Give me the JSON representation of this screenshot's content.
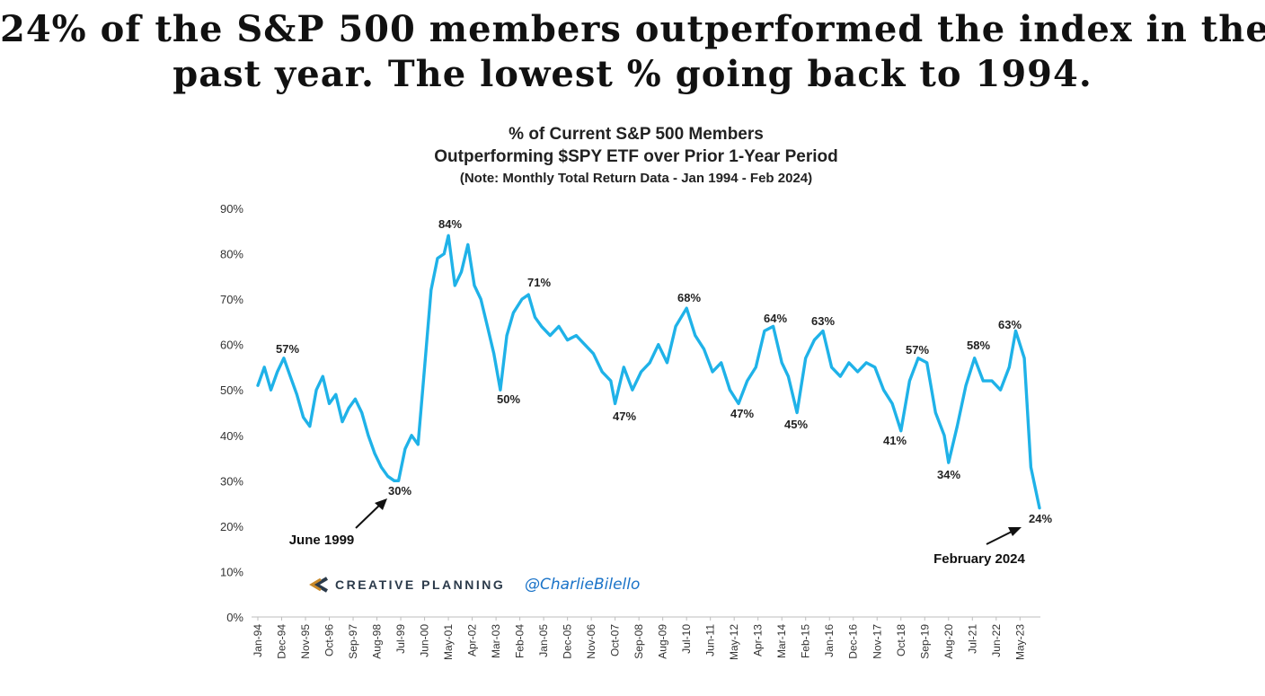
{
  "headline": {
    "line1": "24% of the S&P 500 members outperformed the index in the",
    "line2": "past year. The lowest % going back to 1994."
  },
  "branding": {
    "logo_text": "CREATIVE PLANNING",
    "handle": "@CharlieBilello",
    "logo_colors": [
      "#2b3a4a",
      "#c98a2a"
    ],
    "handle_color": "#1a73c8"
  },
  "chart_data": {
    "type": "line",
    "title": "% of Current S&P 500 Members",
    "subtitle": "Outperforming $SPY ETF over Prior 1-Year Period",
    "note": "(Note: Monthly Total Return Data - Jan 1994 - Feb 2024)",
    "xlabel": "",
    "ylabel": "",
    "ylim": [
      0,
      90
    ],
    "yticks": [
      "0%",
      "10%",
      "20%",
      "30%",
      "40%",
      "50%",
      "60%",
      "70%",
      "80%",
      "90%"
    ],
    "xticks": [
      "Jan-94",
      "Dec-94",
      "Nov-95",
      "Oct-96",
      "Sep-97",
      "Aug-98",
      "Jul-99",
      "Jun-00",
      "May-01",
      "Apr-02",
      "Mar-03",
      "Feb-04",
      "Jan-05",
      "Dec-05",
      "Nov-06",
      "Oct-07",
      "Sep-08",
      "Aug-09",
      "Jul-10",
      "Jun-11",
      "May-12",
      "Apr-13",
      "Mar-14",
      "Feb-15",
      "Jan-16",
      "Dec-16",
      "Nov-17",
      "Oct-18",
      "Sep-19",
      "Aug-20",
      "Jul-21",
      "Jun-22",
      "May-23"
    ],
    "grid": false,
    "legend": "none",
    "line_color": "#1fb2e8",
    "series": [
      {
        "x": [
          "1994-01",
          "1994-04",
          "1994-07",
          "1994-10",
          "1995-01",
          "1995-04",
          "1995-07",
          "1995-10",
          "1996-01",
          "1996-04",
          "1996-07",
          "1996-10",
          "1997-01",
          "1997-04",
          "1997-07",
          "1997-10",
          "1998-01",
          "1998-04",
          "1998-07",
          "1998-10",
          "1999-01",
          "1999-04",
          "1999-06",
          "1999-09",
          "1999-12",
          "2000-03",
          "2000-06",
          "2000-09",
          "2000-12",
          "2001-03",
          "2001-05",
          "2001-08",
          "2001-11",
          "2002-02",
          "2002-05",
          "2002-08",
          "2002-11",
          "2003-02",
          "2003-05",
          "2003-08",
          "2003-11",
          "2004-03",
          "2004-06",
          "2004-09",
          "2004-12",
          "2005-04",
          "2005-08",
          "2005-12",
          "2006-04",
          "2006-08",
          "2006-12",
          "2007-04",
          "2007-08",
          "2007-10",
          "2008-02",
          "2008-06",
          "2008-10",
          "2009-02",
          "2009-06",
          "2009-10",
          "2010-02",
          "2010-07",
          "2010-11",
          "2011-03",
          "2011-07",
          "2011-11",
          "2012-03",
          "2012-07",
          "2012-11",
          "2013-03",
          "2013-07",
          "2013-11",
          "2014-03",
          "2014-06",
          "2014-10",
          "2015-02",
          "2015-06",
          "2015-10",
          "2016-02",
          "2016-06",
          "2016-10",
          "2017-02",
          "2017-06",
          "2017-10",
          "2018-02",
          "2018-06",
          "2018-10",
          "2019-02",
          "2019-06",
          "2019-10",
          "2020-02",
          "2020-06",
          "2020-08",
          "2020-12",
          "2021-04",
          "2021-08",
          "2021-12",
          "2022-04",
          "2022-08",
          "2022-12",
          "2023-03",
          "2023-07",
          "2023-10",
          "2024-02"
        ],
        "values": [
          51,
          55,
          50,
          54,
          57,
          53,
          49,
          44,
          42,
          50,
          53,
          47,
          49,
          43,
          46,
          48,
          45,
          40,
          36,
          33,
          31,
          30,
          30,
          37,
          40,
          38,
          55,
          72,
          79,
          80,
          84,
          73,
          76,
          82,
          73,
          70,
          64,
          58,
          50,
          62,
          67,
          70,
          71,
          66,
          64,
          62,
          64,
          61,
          62,
          60,
          58,
          54,
          52,
          47,
          55,
          50,
          54,
          56,
          60,
          56,
          64,
          68,
          62,
          59,
          54,
          56,
          50,
          47,
          52,
          55,
          63,
          64,
          56,
          53,
          45,
          57,
          61,
          63,
          55,
          53,
          56,
          54,
          56,
          55,
          50,
          47,
          41,
          52,
          57,
          56,
          45,
          40,
          34,
          42,
          51,
          57,
          52,
          52,
          50,
          55,
          63,
          57,
          33,
          24
        ]
      }
    ],
    "data_labels": [
      "57%",
      "84%",
      "71%",
      "50%",
      "47%",
      "68%",
      "47%",
      "64%",
      "45%",
      "63%",
      "41%",
      "57%",
      "34%",
      "58%",
      "63%",
      "30%",
      "24%"
    ],
    "annotations": [
      "June 1999",
      "February 2024"
    ]
  }
}
